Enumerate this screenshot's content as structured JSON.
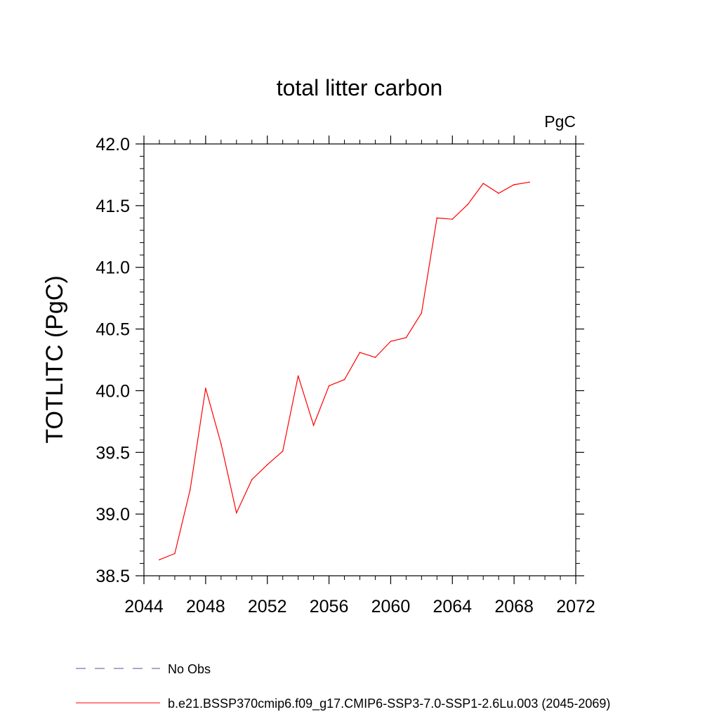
{
  "chart_data": {
    "type": "line",
    "title": "total litter carbon",
    "units_label": "PgC",
    "xlabel": "",
    "ylabel": "TOTLITC  (PgC)",
    "xlim": [
      2044,
      2072
    ],
    "ylim": [
      38.5,
      42.0
    ],
    "x_ticks": [
      "2044",
      "2048",
      "2052",
      "2056",
      "2060",
      "2064",
      "2068",
      "2072"
    ],
    "y_ticks": [
      "38.5",
      "39.0",
      "39.5",
      "40.0",
      "40.5",
      "41.0",
      "41.5",
      "42.0"
    ],
    "grid": false,
    "legend_position": "bottom-left",
    "series": [
      {
        "name": "b.e21.BSSP370cmip6.f09_g17.CMIP6-SSP3-7.0-SSP1-2.6Lu.003 (2045-2069)",
        "color": "#ff0000",
        "x": [
          2045,
          2046,
          2047,
          2048,
          2049,
          2050,
          2051,
          2052,
          2053,
          2054,
          2055,
          2056,
          2057,
          2058,
          2059,
          2060,
          2061,
          2062,
          2063,
          2064,
          2065,
          2066,
          2067,
          2068,
          2069
        ],
        "values": [
          38.63,
          38.68,
          39.2,
          40.02,
          39.57,
          39.01,
          39.28,
          39.4,
          39.51,
          40.12,
          39.72,
          40.04,
          40.09,
          40.31,
          40.27,
          40.4,
          40.43,
          40.63,
          41.4,
          41.39,
          41.51,
          41.68,
          41.6,
          41.67,
          41.69
        ]
      }
    ],
    "legend": [
      {
        "label": "No Obs",
        "color": "#5a4ea0",
        "style": "dashed"
      },
      {
        "label": "b.e21.BSSP370cmip6.f09_g17.CMIP6-SSP3-7.0-SSP1-2.6Lu.003 (2045-2069)",
        "color": "#ff0000",
        "style": "solid"
      }
    ]
  }
}
